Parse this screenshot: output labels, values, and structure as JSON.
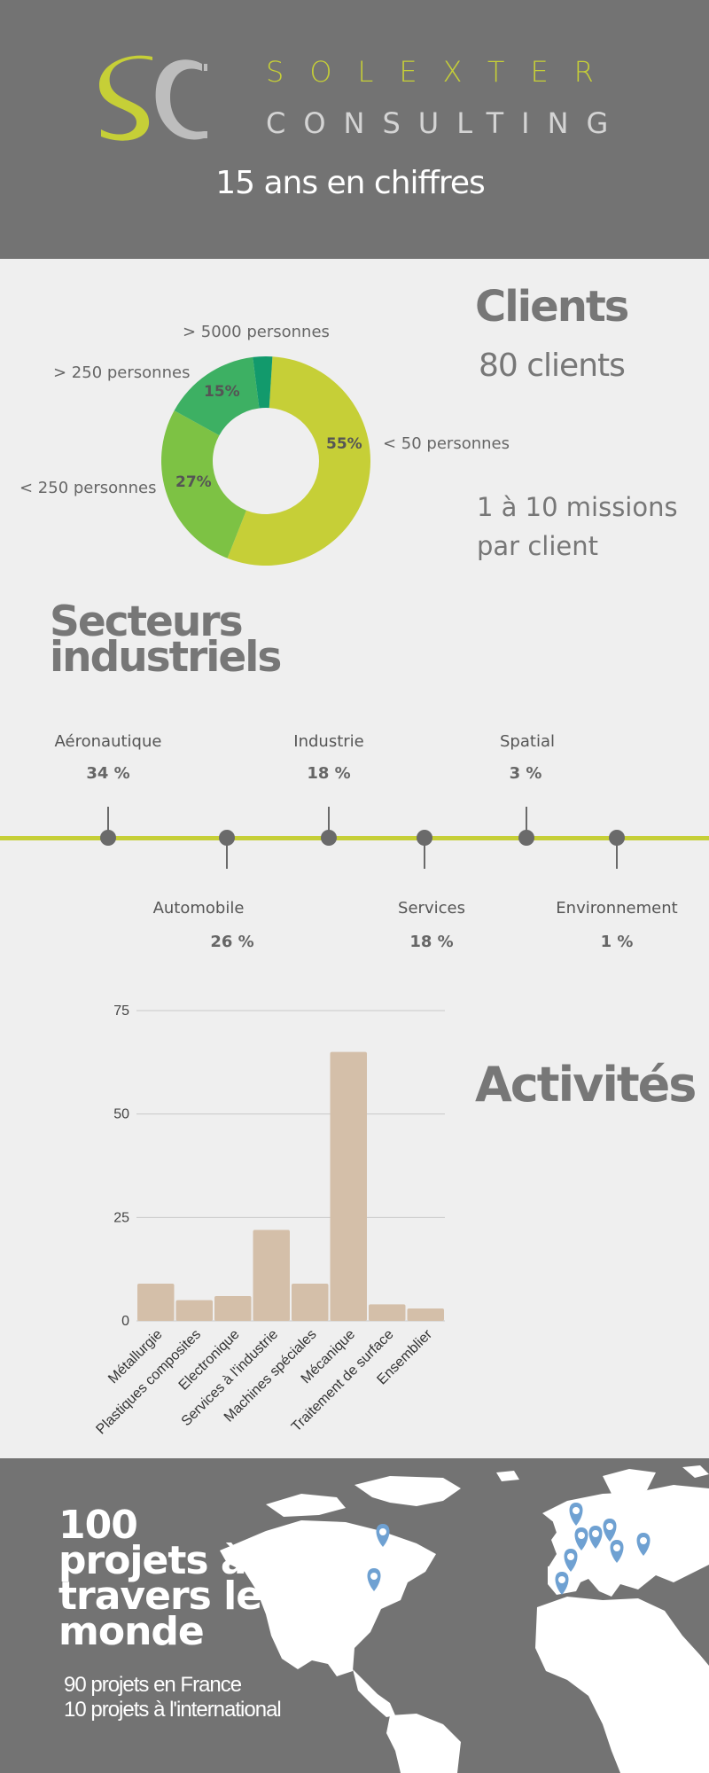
{
  "header": {
    "brand_line1": "SOLEXTER",
    "brand_line2": "CONSULTING",
    "tagline": "15 ans en chiffres",
    "logo_alt": "SC logo"
  },
  "colors": {
    "header_bg": "#737373",
    "page_bg": "#efefef",
    "accent": "#c6cf37",
    "donut": [
      "#c6cf37",
      "#7dc244",
      "#3db063",
      "#129a6c"
    ],
    "bar": "#d4bfa9",
    "pin": "#6fa1d2"
  },
  "clients": {
    "title": "Clients",
    "count": "80 clients",
    "missions": "1 à 10 missions par client",
    "segments": [
      {
        "label": "< 50 personnes",
        "pct_label": "55%",
        "value": 55
      },
      {
        "label": "< 250 personnes",
        "pct_label": "27%",
        "value": 27
      },
      {
        "label": "> 250 personnes",
        "pct_label": "15%",
        "value": 15
      },
      {
        "label": "> 5000 personnes",
        "pct_label": "",
        "value": 3
      }
    ]
  },
  "secteurs": {
    "title": "Secteurs industriels",
    "items": [
      {
        "name": "Aéronautique",
        "value": "34 %"
      },
      {
        "name": "Automobile",
        "value": "26 %"
      },
      {
        "name": "Industrie",
        "value": "18 %"
      },
      {
        "name": "Services",
        "value": "18 %"
      },
      {
        "name": "Spatial",
        "value": "3 %"
      },
      {
        "name": "Environnement",
        "value": "1 %"
      }
    ]
  },
  "activites": {
    "title": "Activités"
  },
  "chart_data": {
    "type": "bar",
    "categories": [
      "Métallurgie",
      "Plastiques composites",
      "Electronique",
      "Services à l'industrie",
      "Machines spéciales",
      "Mécanique",
      "Traitement de surface",
      "Ensemblier"
    ],
    "values": [
      9,
      5,
      6,
      22,
      9,
      65,
      4,
      3
    ],
    "yticks": [
      "0",
      "25",
      "50",
      "75"
    ],
    "ylim": [
      0,
      75
    ],
    "grid": true
  },
  "world": {
    "title": "100 projets à travers le monde",
    "line1": "90 projets en France",
    "line2": "10 projets à l'international",
    "pin_icon": "map-pin-icon"
  }
}
